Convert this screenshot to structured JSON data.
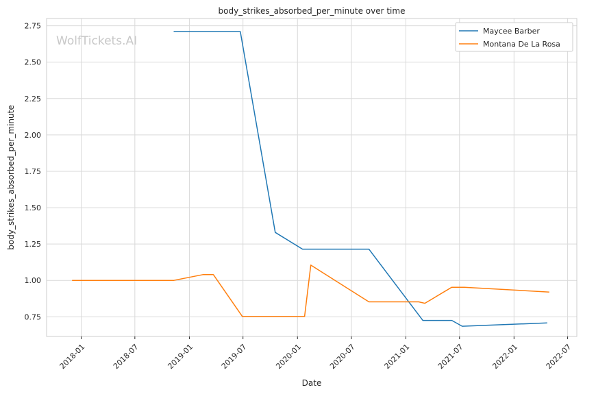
{
  "chart_data": {
    "type": "line",
    "title": "body_strikes_absorbed_per_minute over time",
    "xlabel": "Date",
    "ylabel": "body_strikes_absorbed_per_minute",
    "watermark": "WolfTickets.AI",
    "x_ticks": [
      "2018-01",
      "2018-07",
      "2019-01",
      "2019-07",
      "2020-01",
      "2020-07",
      "2021-01",
      "2021-07",
      "2022-01",
      "2022-07"
    ],
    "y_ticks": [
      "0.75",
      "1.00",
      "1.25",
      "1.50",
      "1.75",
      "2.00",
      "2.25",
      "2.50",
      "2.75"
    ],
    "xlim": [
      "2017-09-06",
      "2022-08-01"
    ],
    "ylim": [
      0.615,
      2.8
    ],
    "grid": true,
    "legend_position": "top-right",
    "series": [
      {
        "name": "Maycee Barber",
        "color": "#1f77b4",
        "points": [
          [
            "2018-11-09",
            2.71
          ],
          [
            "2019-06-22",
            2.71
          ],
          [
            "2019-10-18",
            1.33
          ],
          [
            "2020-01-18",
            1.215
          ],
          [
            "2020-08-29",
            1.215
          ],
          [
            "2021-02-27",
            0.725
          ],
          [
            "2021-06-05",
            0.725
          ],
          [
            "2021-07-10",
            0.685
          ],
          [
            "2022-04-23",
            0.708
          ]
        ]
      },
      {
        "name": "Montana De La Rosa",
        "color": "#ff7f0e",
        "points": [
          [
            "2017-12-01",
            1.0
          ],
          [
            "2018-11-10",
            1.0
          ],
          [
            "2019-02-17",
            1.04
          ],
          [
            "2019-03-23",
            1.04
          ],
          [
            "2019-06-29",
            0.752
          ],
          [
            "2020-01-25",
            0.752
          ],
          [
            "2020-02-15",
            1.105
          ],
          [
            "2020-08-29",
            0.853
          ],
          [
            "2021-02-13",
            0.853
          ],
          [
            "2021-03-06",
            0.843
          ],
          [
            "2021-06-05",
            0.953
          ],
          [
            "2021-07-17",
            0.953
          ],
          [
            "2022-04-30",
            0.92
          ]
        ]
      }
    ]
  }
}
